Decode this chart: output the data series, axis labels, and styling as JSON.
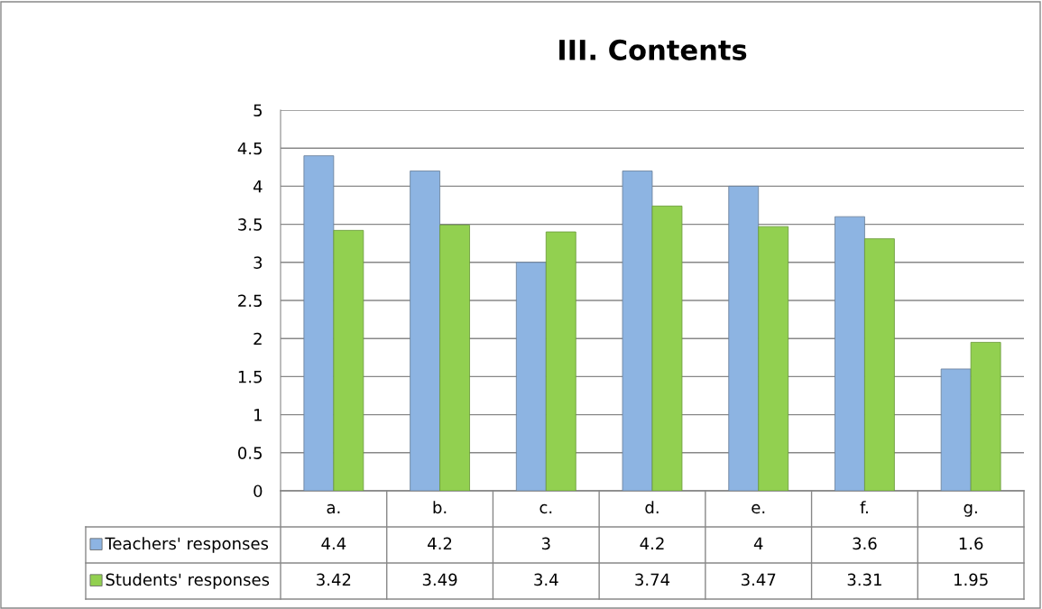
{
  "chart_data": {
    "type": "bar",
    "title": "III. Contents",
    "categories": [
      "a.",
      "b.",
      "c.",
      "d.",
      "e.",
      "f.",
      "g."
    ],
    "series": [
      {
        "name": "Teachers' responses",
        "color": "#8db4e2",
        "values": [
          4.4,
          4.2,
          3,
          4.2,
          4,
          3.6,
          1.6
        ]
      },
      {
        "name": "Students' responses",
        "color": "#92d050",
        "values": [
          3.42,
          3.49,
          3.4,
          3.74,
          3.47,
          3.31,
          1.95
        ]
      }
    ],
    "ylim": [
      0,
      5
    ],
    "yticks": [
      0,
      0.5,
      1,
      1.5,
      2,
      2.5,
      3,
      3.5,
      4,
      4.5,
      5
    ],
    "grid": "y",
    "legend": "bottom",
    "data_labels": true
  }
}
